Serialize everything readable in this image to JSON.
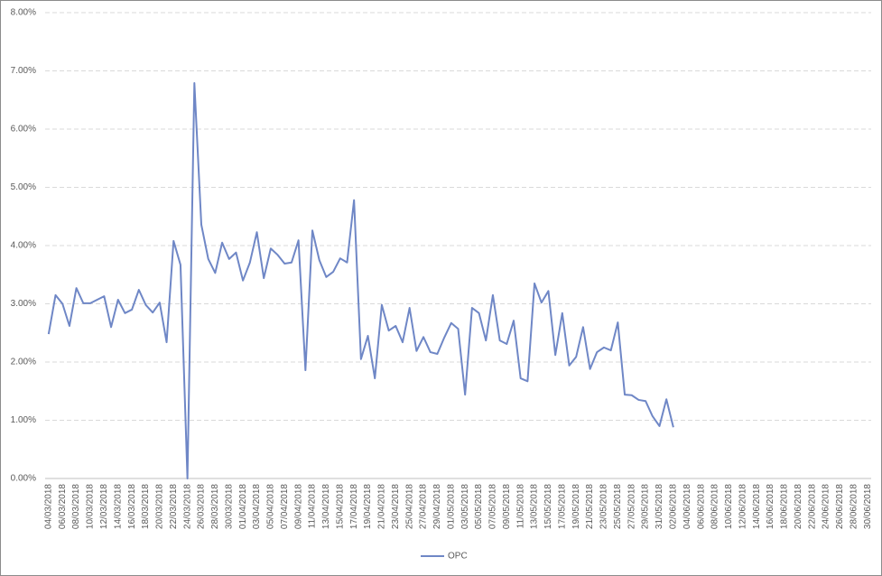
{
  "chart_data": {
    "type": "line",
    "categories": [
      "04/03/2018",
      null,
      "06/03/2018",
      null,
      "08/03/2018",
      null,
      "10/03/2018",
      null,
      "12/03/2018",
      null,
      "14/03/2018",
      null,
      "16/03/2018",
      null,
      "18/03/2018",
      null,
      "20/03/2018",
      null,
      "22/03/2018",
      null,
      "24/03/2018",
      null,
      "26/03/2018",
      null,
      "28/03/2018",
      null,
      "30/03/2018",
      null,
      "01/04/2018",
      null,
      "03/04/2018",
      null,
      "05/04/2018",
      null,
      "07/04/2018",
      null,
      "09/04/2018",
      null,
      "11/04/2018",
      null,
      "13/04/2018",
      null,
      "15/04/2018",
      null,
      "17/04/2018",
      null,
      "19/04/2018",
      null,
      "21/04/2018",
      null,
      "23/04/2018",
      null,
      "25/04/2018",
      null,
      "27/04/2018",
      null,
      "29/04/2018",
      null,
      "01/05/2018",
      null,
      "03/05/2018",
      null,
      "05/05/2018",
      null,
      "07/05/2018",
      null,
      "09/05/2018",
      null,
      "11/05/2018",
      null,
      "13/05/2018",
      null,
      "15/05/2018",
      null,
      "17/05/2018",
      null,
      "19/05/2018",
      null,
      "21/05/2018",
      null,
      "23/05/2018",
      null,
      "25/05/2018",
      null,
      "27/05/2018",
      null,
      "29/05/2018",
      null,
      "31/05/2018",
      null,
      "02/06/2018",
      null,
      "04/06/2018",
      null,
      "06/06/2018",
      null,
      "08/06/2018",
      null,
      "10/06/2018",
      null,
      "12/06/2018",
      null,
      "14/06/2018",
      null,
      "16/06/2018",
      null,
      "18/06/2018",
      null,
      "20/06/2018",
      null,
      "22/06/2018",
      null,
      "24/06/2018",
      null,
      "26/06/2018",
      null,
      "28/06/2018",
      null,
      "30/06/2018"
    ],
    "series": [
      {
        "name": "OPC",
        "color": "#6f87c6",
        "values": [
          2.48,
          3.15,
          3.0,
          2.62,
          3.27,
          3.01,
          3.01,
          3.07,
          3.13,
          2.6,
          3.07,
          2.84,
          2.9,
          3.24,
          2.98,
          2.85,
          3.02,
          2.34,
          4.08,
          3.67,
          0,
          6.79,
          4.36,
          3.77,
          3.53,
          4.05,
          3.77,
          3.88,
          3.4,
          3.71,
          4.23,
          3.44,
          3.95,
          3.84,
          3.69,
          3.71,
          4.09,
          1.86,
          4.26,
          3.75,
          3.46,
          3.55,
          3.78,
          3.71,
          4.78,
          2.05,
          2.45,
          1.72,
          2.98,
          2.54,
          2.62,
          2.34,
          2.93,
          2.19,
          2.43,
          2.17,
          2.14,
          2.42,
          2.67,
          2.57,
          1.44,
          2.93,
          2.84,
          2.37,
          3.15,
          2.37,
          2.31,
          2.71,
          1.72,
          1.67,
          3.35,
          3.02,
          3.22,
          2.12,
          2.84,
          1.94,
          2.09,
          2.6,
          1.88,
          2.17,
          2.25,
          2.2,
          2.68,
          1.44,
          1.43,
          1.35,
          1.33,
          1.07,
          0.9,
          1.36,
          0.88,
          null,
          null,
          null,
          null,
          null,
          null,
          null,
          null,
          null,
          null,
          null,
          null,
          null,
          null,
          null,
          null,
          null,
          null,
          null,
          null,
          null,
          null,
          null,
          null,
          null,
          null,
          null,
          null
        ]
      }
    ],
    "ylim": [
      0,
      8
    ],
    "yticks": [
      {
        "value": 0,
        "label": "0.00%"
      },
      {
        "value": 1,
        "label": "1.00%"
      },
      {
        "value": 2,
        "label": "2.00%"
      },
      {
        "value": 3,
        "label": "3.00%"
      },
      {
        "value": 4,
        "label": "4.00%"
      },
      {
        "value": 5,
        "label": "5.00%"
      },
      {
        "value": 6,
        "label": "6.00%"
      },
      {
        "value": 7,
        "label": "7.00%"
      },
      {
        "value": 8,
        "label": "8.00%"
      }
    ],
    "grid": true,
    "legend": "bottom"
  }
}
